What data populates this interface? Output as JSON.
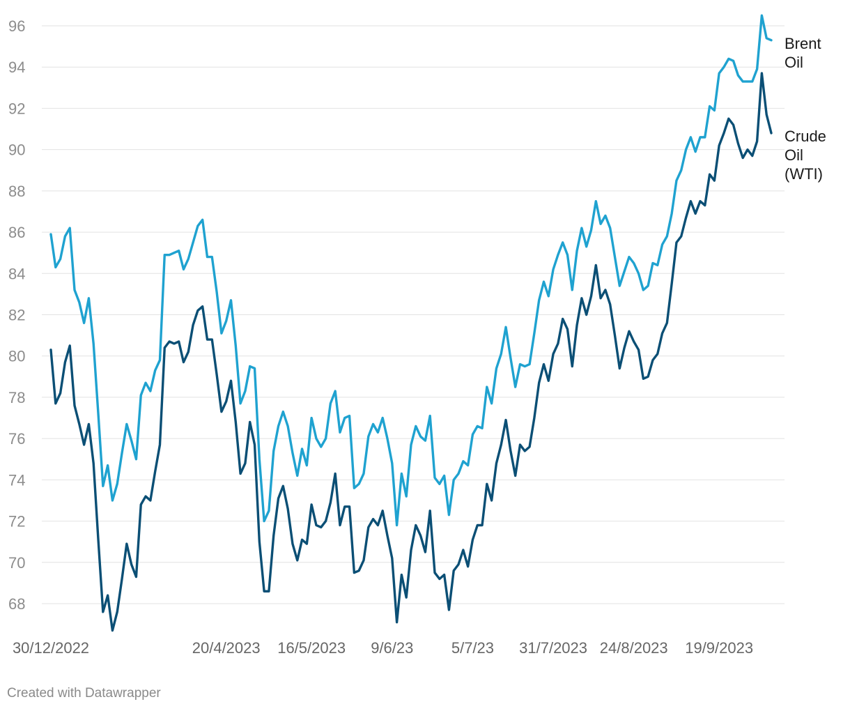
{
  "chart_data": {
    "type": "line",
    "y_ticks": [
      68,
      70,
      72,
      74,
      76,
      78,
      80,
      82,
      84,
      86,
      88,
      90,
      92,
      94,
      96
    ],
    "ylim": [
      67,
      96.5
    ],
    "x_tick_labels": [
      {
        "label": "30/12/2022",
        "index": 0
      },
      {
        "label": "20/4/2023",
        "index": 37
      },
      {
        "label": "16/5/2023",
        "index": 55
      },
      {
        "label": "9/6/23",
        "index": 72
      },
      {
        "label": "5/7/23",
        "index": 89
      },
      {
        "label": "31/7/2023",
        "index": 106
      },
      {
        "label": "24/8/2023",
        "index": 123
      },
      {
        "label": "19/9/2023",
        "index": 141
      }
    ],
    "grid": true,
    "legend": "inline-right",
    "series": [
      {
        "name": "Brent Oil",
        "color": "#1fa2d0",
        "label_lines": [
          "Brent",
          "Oil"
        ],
        "values": [
          85.9,
          84.3,
          84.7,
          85.8,
          86.2,
          83.2,
          82.6,
          81.6,
          82.8,
          80.6,
          77.2,
          73.7,
          74.7,
          73.0,
          73.8,
          75.3,
          76.7,
          75.9,
          75.0,
          78.1,
          78.7,
          78.3,
          79.3,
          79.8,
          84.9,
          84.9,
          85.0,
          85.1,
          84.2,
          84.7,
          85.5,
          86.3,
          86.6,
          84.8,
          84.8,
          83.1,
          81.1,
          81.7,
          82.7,
          80.5,
          77.7,
          78.3,
          79.5,
          79.4,
          75.0,
          72.0,
          72.5,
          75.4,
          76.6,
          77.3,
          76.6,
          75.3,
          74.2,
          75.5,
          74.7,
          77.0,
          76.0,
          75.6,
          76.0,
          77.7,
          78.3,
          76.3,
          77.0,
          77.1,
          73.6,
          73.8,
          74.3,
          76.1,
          76.7,
          76.3,
          77.0,
          76.0,
          74.8,
          71.8,
          74.3,
          73.2,
          75.7,
          76.6,
          76.1,
          75.9,
          77.1,
          74.1,
          73.8,
          74.2,
          72.3,
          74.0,
          74.3,
          74.9,
          74.7,
          76.2,
          76.6,
          76.5,
          78.5,
          77.7,
          79.4,
          80.1,
          81.4,
          79.9,
          78.5,
          79.6,
          79.5,
          79.6,
          81.1,
          82.7,
          83.6,
          82.9,
          84.2,
          84.9,
          85.5,
          84.9,
          83.2,
          85.1,
          86.2,
          85.3,
          86.1,
          87.5,
          86.4,
          86.8,
          86.2,
          84.8,
          83.4,
          84.1,
          84.8,
          84.5,
          84.0,
          83.2,
          83.4,
          84.5,
          84.4,
          85.4,
          85.8,
          86.9,
          88.5,
          89.0,
          90.0,
          90.6,
          89.9,
          90.6,
          90.6,
          92.1,
          91.9,
          93.7,
          94.0,
          94.4,
          94.3,
          93.6,
          93.3,
          93.3,
          93.3,
          93.9,
          96.5,
          95.4,
          95.3
        ]
      },
      {
        "name": "Crude Oil (WTI)",
        "color": "#0b4f75",
        "label_lines": [
          "Crude",
          "Oil",
          "(WTI)"
        ],
        "values": [
          80.3,
          77.7,
          78.2,
          79.7,
          80.5,
          77.6,
          76.7,
          75.7,
          76.7,
          74.8,
          71.1,
          67.6,
          68.4,
          66.7,
          67.6,
          69.2,
          70.9,
          69.9,
          69.3,
          72.8,
          73.2,
          73.0,
          74.4,
          75.7,
          80.4,
          80.7,
          80.6,
          80.7,
          79.7,
          80.2,
          81.5,
          82.2,
          82.4,
          80.8,
          80.8,
          79.1,
          77.3,
          77.8,
          78.8,
          76.8,
          74.3,
          74.8,
          76.8,
          75.7,
          71.0,
          68.6,
          68.6,
          71.3,
          73.1,
          73.7,
          72.6,
          70.9,
          70.1,
          71.1,
          70.9,
          72.8,
          71.8,
          71.7,
          72.0,
          72.9,
          74.3,
          71.8,
          72.7,
          72.7,
          69.5,
          69.6,
          70.1,
          71.7,
          72.1,
          71.8,
          72.5,
          71.3,
          70.2,
          67.1,
          69.4,
          68.3,
          70.6,
          71.8,
          71.3,
          70.5,
          72.5,
          69.5,
          69.2,
          69.4,
          67.7,
          69.6,
          69.9,
          70.6,
          69.8,
          71.1,
          71.8,
          71.8,
          73.8,
          73.0,
          74.8,
          75.7,
          76.9,
          75.4,
          74.2,
          75.7,
          75.4,
          75.6,
          77.0,
          78.7,
          79.6,
          78.8,
          80.1,
          80.6,
          81.8,
          81.3,
          79.5,
          81.5,
          82.8,
          82.0,
          82.9,
          84.4,
          82.8,
          83.2,
          82.5,
          81.0,
          79.4,
          80.4,
          81.2,
          80.7,
          80.3,
          78.9,
          79.0,
          79.8,
          80.1,
          81.1,
          81.6,
          83.5,
          85.5,
          85.8,
          86.7,
          87.5,
          86.9,
          87.5,
          87.3,
          88.8,
          88.5,
          90.2,
          90.8,
          91.5,
          91.2,
          90.3,
          89.6,
          90.0,
          89.7,
          90.4,
          93.7,
          91.7,
          90.8
        ]
      }
    ]
  },
  "footer": {
    "credit": "Created with Datawrapper"
  }
}
